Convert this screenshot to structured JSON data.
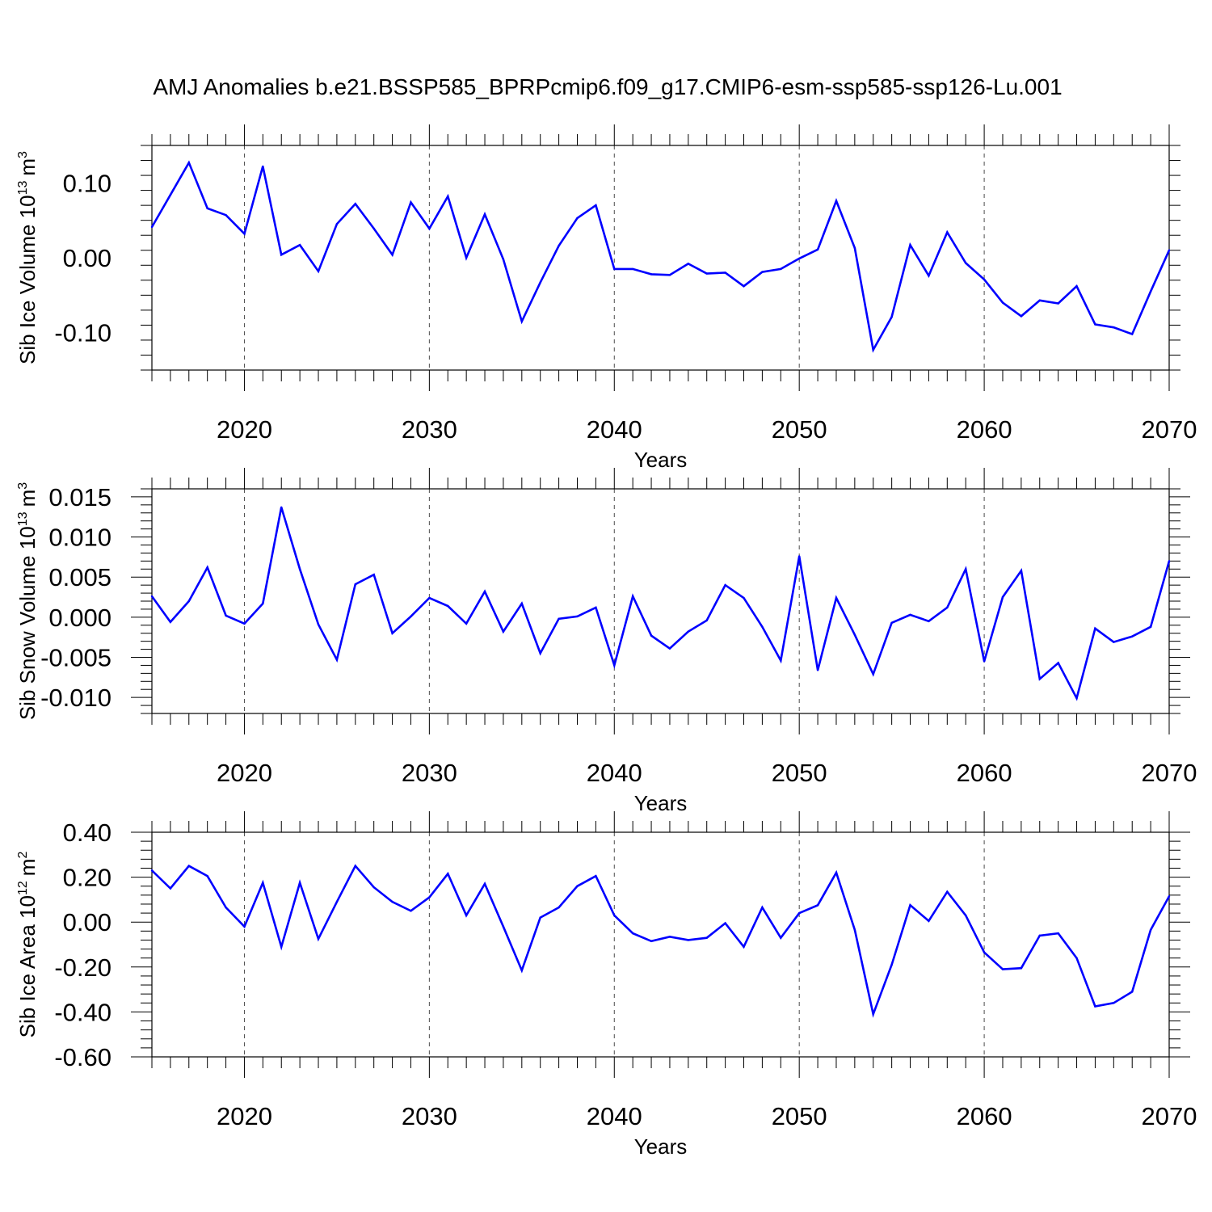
{
  "title": "AMJ Anomalies b.e21.BSSP585_BPRPcmip6.f09_g17.CMIP6-esm-ssp585-ssp126-Lu.001",
  "chart_data": [
    {
      "type": "line",
      "ylabel_main": "Sib Ice Volume 10",
      "ylabel_exp": "13",
      "ylabel_unit": "m",
      "ylabel_unit_exp": "3",
      "xlabel": "Years",
      "xlim": [
        2015,
        2070
      ],
      "ylim": [
        -0.15,
        0.15
      ],
      "yticks": [
        -0.1,
        0.0,
        0.1
      ],
      "ytick_labels": [
        "-0.10",
        "0.00",
        "0.10"
      ],
      "xticks": [
        2020,
        2030,
        2040,
        2050,
        2060,
        2070
      ],
      "xtick_labels": [
        "2020",
        "2030",
        "2040",
        "2050",
        "2060",
        "2070"
      ],
      "grid": "vertical dashed at labeled years",
      "color": "#0000ff",
      "x": [
        2015,
        2016,
        2017,
        2018,
        2019,
        2020,
        2021,
        2022,
        2023,
        2024,
        2025,
        2026,
        2027,
        2028,
        2029,
        2030,
        2031,
        2032,
        2033,
        2034,
        2035,
        2036,
        2037,
        2038,
        2039,
        2040,
        2041,
        2042,
        2043,
        2044,
        2045,
        2046,
        2047,
        2048,
        2049,
        2050,
        2051,
        2052,
        2053,
        2054,
        2055,
        2056,
        2057,
        2058,
        2059,
        2060,
        2061,
        2062,
        2063,
        2064,
        2065,
        2066,
        2067,
        2068,
        2069,
        2070
      ],
      "y": [
        0.041,
        0.084,
        0.127,
        0.066,
        0.057,
        0.032,
        0.122,
        0.004,
        0.017,
        -0.018,
        0.045,
        0.072,
        0.039,
        0.004,
        0.074,
        0.039,
        0.082,
        0.0,
        0.058,
        -0.002,
        -0.085,
        -0.033,
        0.016,
        0.053,
        0.07,
        -0.015,
        -0.015,
        -0.022,
        -0.023,
        -0.008,
        -0.021,
        -0.02,
        -0.038,
        -0.019,
        -0.015,
        -0.001,
        0.011,
        0.076,
        0.013,
        -0.123,
        -0.079,
        0.017,
        -0.024,
        0.034,
        -0.007,
        -0.029,
        -0.06,
        -0.078,
        -0.057,
        -0.061,
        -0.038,
        -0.089,
        -0.093,
        -0.102,
        -0.045,
        0.01
      ]
    },
    {
      "type": "line",
      "ylabel_main": "Sib Snow Volume 10",
      "ylabel_exp": "13",
      "ylabel_unit": "m",
      "ylabel_unit_exp": "3",
      "xlabel": "Years",
      "xlim": [
        2015,
        2070
      ],
      "ylim": [
        -0.012,
        0.016
      ],
      "yticks": [
        -0.01,
        -0.005,
        0.0,
        0.005,
        0.01,
        0.015
      ],
      "ytick_labels": [
        "-0.010",
        "-0.005",
        "0.000",
        "0.005",
        "0.010",
        "0.015"
      ],
      "xticks": [
        2020,
        2030,
        2040,
        2050,
        2060,
        2070
      ],
      "xtick_labels": [
        "2020",
        "2030",
        "2040",
        "2050",
        "2060",
        "2070"
      ],
      "grid": "vertical dashed at labeled years",
      "color": "#0000ff",
      "x": [
        2015,
        2016,
        2017,
        2018,
        2019,
        2020,
        2021,
        2022,
        2023,
        2024,
        2025,
        2026,
        2027,
        2028,
        2029,
        2030,
        2031,
        2032,
        2033,
        2034,
        2035,
        2036,
        2037,
        2038,
        2039,
        2040,
        2041,
        2042,
        2043,
        2044,
        2045,
        2046,
        2047,
        2048,
        2049,
        2050,
        2051,
        2052,
        2053,
        2054,
        2055,
        2056,
        2057,
        2058,
        2059,
        2060,
        2061,
        2062,
        2063,
        2064,
        2065,
        2066,
        2067,
        2068,
        2069,
        2070
      ],
      "y": [
        0.0026,
        -0.0006,
        0.002,
        0.0062,
        0.0002,
        -0.0008,
        0.0017,
        0.0137,
        0.006,
        -0.0009,
        -0.0053,
        0.0041,
        0.0053,
        -0.002,
        0.0001,
        0.0024,
        0.0014,
        -0.0008,
        0.0032,
        -0.0018,
        0.0017,
        -0.0045,
        -0.0002,
        0.0001,
        0.0012,
        -0.006,
        0.0026,
        -0.0023,
        -0.0039,
        -0.0018,
        -0.0004,
        0.004,
        0.0024,
        -0.0012,
        -0.0054,
        0.0076,
        -0.0066,
        0.0024,
        -0.0022,
        -0.0071,
        -0.0007,
        0.0003,
        -0.0005,
        0.0012,
        0.006,
        -0.0055,
        0.0025,
        0.0058,
        -0.0077,
        -0.0057,
        -0.0101,
        -0.0014,
        -0.0031,
        -0.0024,
        -0.0012,
        0.007
      ]
    },
    {
      "type": "line",
      "ylabel_main": "Sib Ice Area 10",
      "ylabel_exp": "12",
      "ylabel_unit": "m",
      "ylabel_unit_exp": "2",
      "xlabel": "Years",
      "xlim": [
        2015,
        2070
      ],
      "ylim": [
        -0.6,
        0.4
      ],
      "yticks": [
        -0.6,
        -0.4,
        -0.2,
        0.0,
        0.2,
        0.4
      ],
      "ytick_labels": [
        "-0.60",
        "-0.40",
        "-0.20",
        "0.00",
        "0.20",
        "0.40"
      ],
      "xticks": [
        2020,
        2030,
        2040,
        2050,
        2060,
        2070
      ],
      "xtick_labels": [
        "2020",
        "2030",
        "2040",
        "2050",
        "2060",
        "2070"
      ],
      "grid": "vertical dashed at labeled years",
      "color": "#0000ff",
      "x": [
        2015,
        2016,
        2017,
        2018,
        2019,
        2020,
        2021,
        2022,
        2023,
        2024,
        2025,
        2026,
        2027,
        2028,
        2029,
        2030,
        2031,
        2032,
        2033,
        2034,
        2035,
        2036,
        2037,
        2038,
        2039,
        2040,
        2041,
        2042,
        2043,
        2044,
        2045,
        2046,
        2047,
        2048,
        2049,
        2050,
        2051,
        2052,
        2053,
        2054,
        2055,
        2056,
        2057,
        2058,
        2059,
        2060,
        2061,
        2062,
        2063,
        2064,
        2065,
        2066,
        2067,
        2068,
        2069,
        2070
      ],
      "y": [
        0.23,
        0.15,
        0.25,
        0.205,
        0.065,
        -0.02,
        0.175,
        -0.11,
        0.175,
        -0.075,
        0.09,
        0.25,
        0.155,
        0.09,
        0.05,
        0.11,
        0.215,
        0.03,
        0.17,
        -0.02,
        -0.215,
        0.02,
        0.065,
        0.16,
        0.205,
        0.03,
        -0.05,
        -0.085,
        -0.065,
        -0.08,
        -0.07,
        -0.005,
        -0.11,
        0.065,
        -0.07,
        0.04,
        0.075,
        0.22,
        -0.035,
        -0.41,
        -0.19,
        0.075,
        0.005,
        0.135,
        0.03,
        -0.135,
        -0.21,
        -0.205,
        -0.06,
        -0.05,
        -0.16,
        -0.375,
        -0.36,
        -0.31,
        -0.035,
        0.115
      ]
    }
  ]
}
